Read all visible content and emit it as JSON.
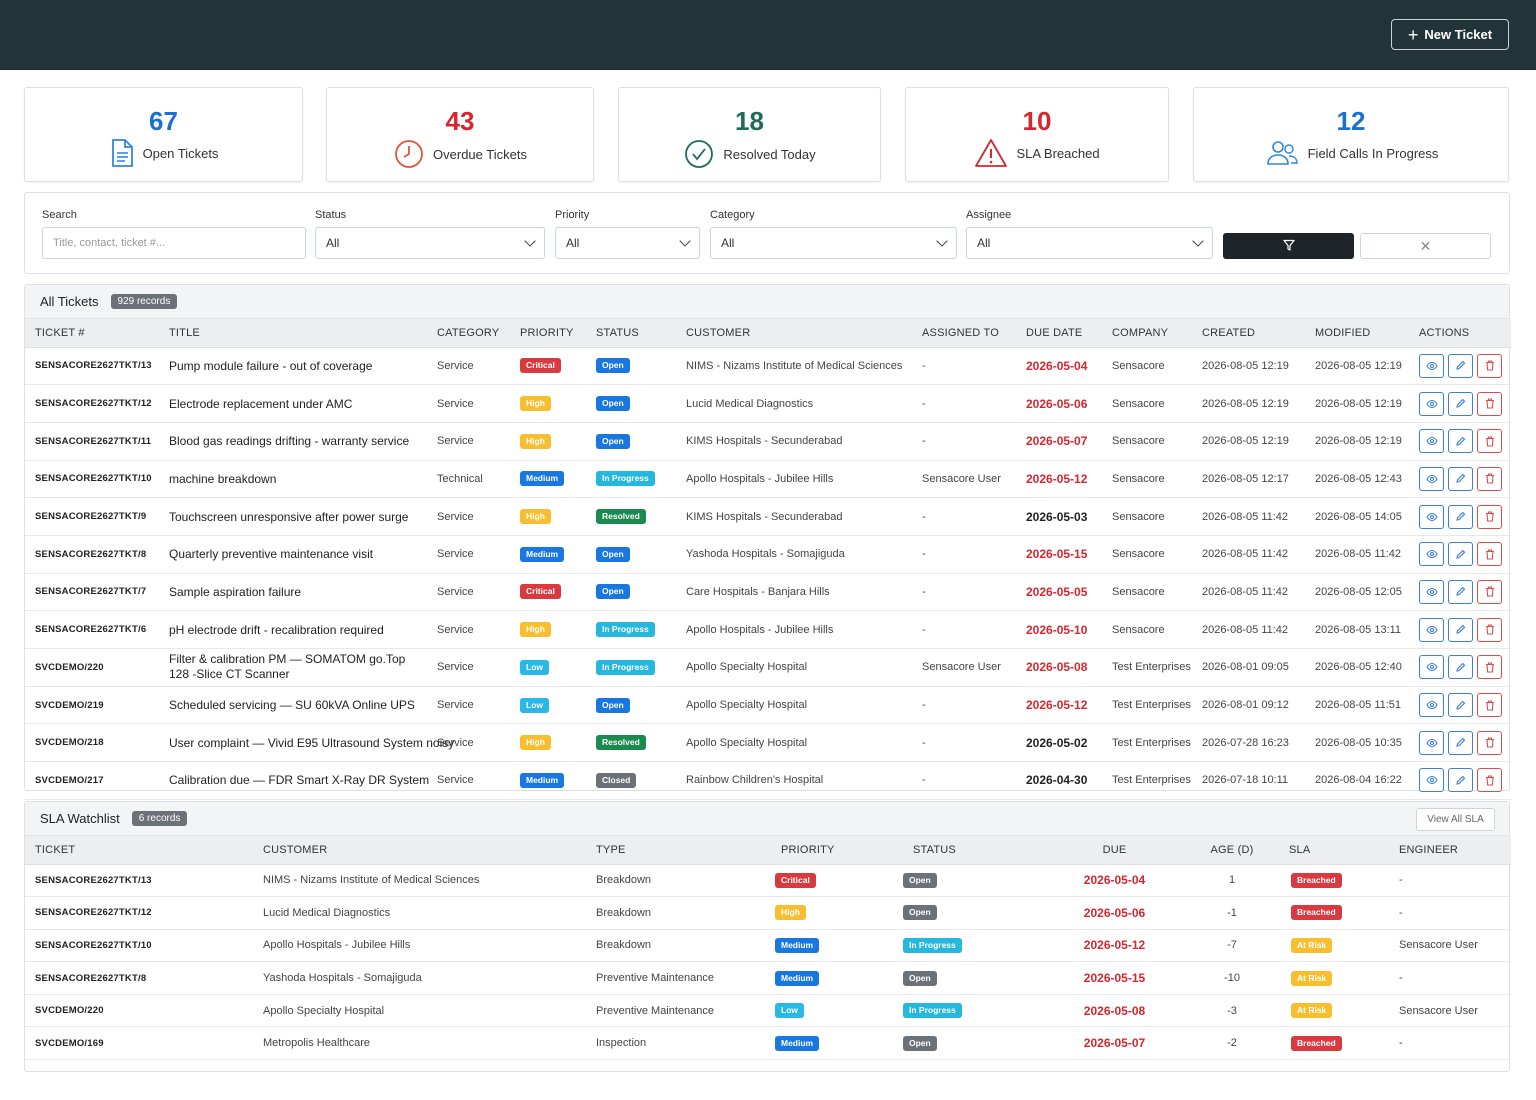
{
  "header": {
    "new_ticket_label": "New Ticket"
  },
  "stats": [
    {
      "value": "67",
      "label": "Open Tickets",
      "color": "#1a6fd6",
      "icon": "document-icon"
    },
    {
      "value": "43",
      "label": "Overdue Tickets",
      "color": "#d7262e",
      "icon": "clock-icon"
    },
    {
      "value": "18",
      "label": "Resolved Today",
      "color": "#1d6b58",
      "icon": "check-circle-icon"
    },
    {
      "value": "10",
      "label": "SLA Breached",
      "color": "#d7262e",
      "icon": "warning-icon"
    },
    {
      "value": "12",
      "label": "Field Calls In Progress",
      "color": "#1a6fd6",
      "icon": "users-icon"
    }
  ],
  "filters": {
    "search_label": "Search",
    "search_placeholder": "Title, contact, ticket #...",
    "status_label": "Status",
    "status_value": "All",
    "priority_label": "Priority",
    "priority_value": "All",
    "category_label": "Category",
    "category_value": "All",
    "assignee_label": "Assignee",
    "assignee_value": "All"
  },
  "tickets": {
    "title": "All Tickets",
    "count": "929 records",
    "columns": [
      "TICKET #",
      "TITLE",
      "CATEGORY",
      "PRIORITY",
      "STATUS",
      "CUSTOMER",
      "ASSIGNED TO",
      "DUE DATE",
      "COMPANY",
      "CREATED",
      "MODIFIED",
      "ACTIONS"
    ],
    "rows": [
      {
        "id": "SENSACORE2627TKT/13",
        "title": "Pump module failure - out of coverage",
        "category": "Service",
        "priority": "Critical",
        "status": "Open",
        "customer": "NIMS - Nizams Institute of Medical Sciences",
        "assigned": "-",
        "due": "2026-05-04",
        "overdue": true,
        "company": "Sensacore",
        "created": "2026-08-05 12:19",
        "modified": "2026-08-05 12:19"
      },
      {
        "id": "SENSACORE2627TKT/12",
        "title": "Electrode replacement under AMC",
        "category": "Service",
        "priority": "High",
        "status": "Open",
        "customer": "Lucid Medical Diagnostics",
        "assigned": "-",
        "due": "2026-05-06",
        "overdue": true,
        "company": "Sensacore",
        "created": "2026-08-05 12:19",
        "modified": "2026-08-05 12:19"
      },
      {
        "id": "SENSACORE2627TKT/11",
        "title": "Blood gas readings drifting - warranty service",
        "category": "Service",
        "priority": "High",
        "status": "Open",
        "customer": "KIMS Hospitals - Secunderabad",
        "assigned": "-",
        "due": "2026-05-07",
        "overdue": true,
        "company": "Sensacore",
        "created": "2026-08-05 12:19",
        "modified": "2026-08-05 12:19"
      },
      {
        "id": "SENSACORE2627TKT/10",
        "title": "machine breakdown",
        "category": "Technical",
        "priority": "Medium",
        "status": "In Progress",
        "customer": "Apollo Hospitals - Jubilee Hills",
        "assigned": "Sensacore User",
        "due": "2026-05-12",
        "overdue": true,
        "company": "Sensacore",
        "created": "2026-08-05 12:17",
        "modified": "2026-08-05 12:43"
      },
      {
        "id": "SENSACORE2627TKT/9",
        "title": "Touchscreen unresponsive after power surge",
        "category": "Service",
        "priority": "High",
        "status": "Resolved",
        "customer": "KIMS Hospitals - Secunderabad",
        "assigned": "-",
        "due": "2026-05-03",
        "overdue": false,
        "company": "Sensacore",
        "created": "2026-08-05 11:42",
        "modified": "2026-08-05 14:05"
      },
      {
        "id": "SENSACORE2627TKT/8",
        "title": "Quarterly preventive maintenance visit",
        "category": "Service",
        "priority": "Medium",
        "status": "Open",
        "customer": "Yashoda Hospitals - Somajiguda",
        "assigned": "-",
        "due": "2026-05-15",
        "overdue": true,
        "company": "Sensacore",
        "created": "2026-08-05 11:42",
        "modified": "2026-08-05 11:42"
      },
      {
        "id": "SENSACORE2627TKT/7",
        "title": "Sample aspiration failure",
        "category": "Service",
        "priority": "Critical",
        "status": "Open",
        "customer": "Care Hospitals - Banjara Hills",
        "assigned": "-",
        "due": "2026-05-05",
        "overdue": true,
        "company": "Sensacore",
        "created": "2026-08-05 11:42",
        "modified": "2026-08-05 12:05"
      },
      {
        "id": "SENSACORE2627TKT/6",
        "title": "pH electrode drift - recalibration required",
        "category": "Service",
        "priority": "High",
        "status": "In Progress",
        "customer": "Apollo Hospitals - Jubilee Hills",
        "assigned": "-",
        "due": "2026-05-10",
        "overdue": true,
        "company": "Sensacore",
        "created": "2026-08-05 11:42",
        "modified": "2026-08-05 13:11"
      },
      {
        "id": "SVCDEMO/220",
        "title": "Filter & calibration PM — SOMATOM go.Top 128 -Slice CT Scanner",
        "category": "Service",
        "priority": "Low",
        "status": "In Progress",
        "customer": "Apollo Specialty Hospital",
        "assigned": "Sensacore User",
        "due": "2026-05-08",
        "overdue": true,
        "company": "Test Enterprises",
        "created": "2026-08-01 09:05",
        "modified": "2026-08-05 12:40"
      },
      {
        "id": "SVCDEMO/219",
        "title": "Scheduled servicing — SU 60kVA Online UPS",
        "category": "Service",
        "priority": "Low",
        "status": "Open",
        "customer": "Apollo Specialty Hospital",
        "assigned": "-",
        "due": "2026-05-12",
        "overdue": true,
        "company": "Test Enterprises",
        "created": "2026-08-01 09:12",
        "modified": "2026-08-05 11:51"
      },
      {
        "id": "SVCDEMO/218",
        "title": "User complaint — Vivid E95 Ultrasound System noisy",
        "category": "Service",
        "priority": "High",
        "status": "Resolved",
        "customer": "Apollo Specialty Hospital",
        "assigned": "-",
        "due": "2026-05-02",
        "overdue": false,
        "company": "Test Enterprises",
        "created": "2026-07-28 16:23",
        "modified": "2026-08-05 10:35"
      },
      {
        "id": "SVCDEMO/217",
        "title": "Calibration due — FDR Smart X-Ray DR System",
        "category": "Service",
        "priority": "Medium",
        "status": "Closed",
        "customer": "Rainbow Children's Hospital",
        "assigned": "-",
        "due": "2026-04-30",
        "overdue": false,
        "company": "Test Enterprises",
        "created": "2026-07-18 10:11",
        "modified": "2026-08-04 16:22"
      }
    ]
  },
  "sla": {
    "title": "SLA Watchlist",
    "count": "6 records",
    "view_all_label": "View All SLA",
    "columns": [
      "TICKET",
      "CUSTOMER",
      "TYPE",
      "PRIORITY",
      "STATUS",
      "DUE",
      "AGE (D)",
      "SLA",
      "ENGINEER"
    ],
    "rows": [
      {
        "ticket": "SENSACORE2627TKT/13",
        "customer": "NIMS - Nizams Institute of Medical Sciences",
        "type": "Breakdown",
        "priority": "Critical",
        "status": "Open",
        "due": "2026-05-04",
        "age": "1",
        "sla": "Breached",
        "engineer": "-"
      },
      {
        "ticket": "SENSACORE2627TKT/12",
        "customer": "Lucid Medical Diagnostics",
        "type": "Breakdown",
        "priority": "High",
        "status": "Open",
        "due": "2026-05-06",
        "age": "-1",
        "sla": "Breached",
        "engineer": "-"
      },
      {
        "ticket": "SENSACORE2627TKT/10",
        "customer": "Apollo Hospitals - Jubilee Hills",
        "type": "Breakdown",
        "priority": "Medium",
        "status": "In Progress",
        "due": "2026-05-12",
        "age": "-7",
        "sla": "At Risk",
        "engineer": "Sensacore User"
      },
      {
        "ticket": "SENSACORE2627TKT/8",
        "customer": "Yashoda Hospitals - Somajiguda",
        "type": "Preventive Maintenance",
        "priority": "Medium",
        "status": "Open",
        "due": "2026-05-15",
        "age": "-10",
        "sla": "At Risk",
        "engineer": "-"
      },
      {
        "ticket": "SVCDEMO/220",
        "customer": "Apollo Specialty Hospital",
        "type": "Preventive Maintenance",
        "priority": "Low",
        "status": "In Progress",
        "due": "2026-05-08",
        "age": "-3",
        "sla": "At Risk",
        "engineer": "Sensacore User"
      },
      {
        "ticket": "SVCDEMO/169",
        "customer": "Metropolis Healthcare",
        "type": "Inspection",
        "priority": "Medium",
        "status": "Open",
        "due": "2026-05-07",
        "age": "-2",
        "sla": "Breached",
        "engineer": "-"
      }
    ]
  }
}
